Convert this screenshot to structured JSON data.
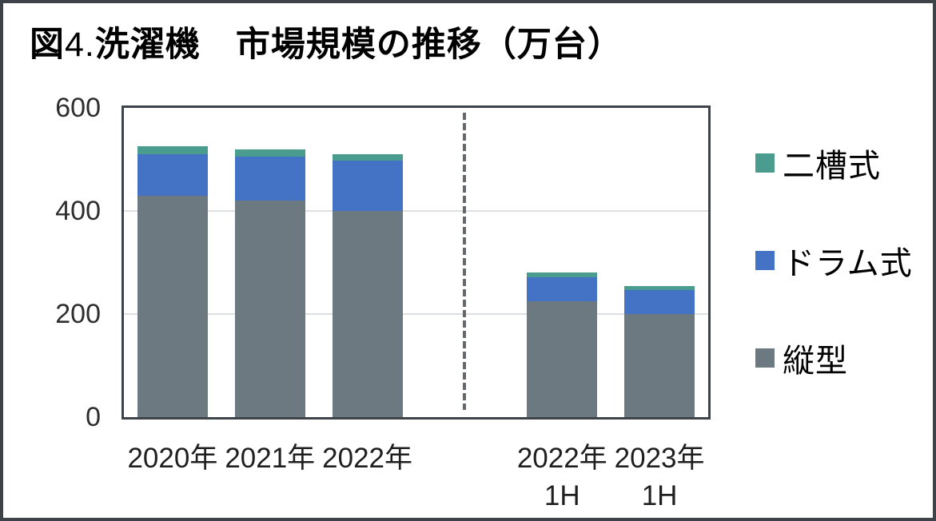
{
  "figure": {
    "title": {
      "fig": "図",
      "num": "4.",
      "main": "洗濯機　市場規模の推移（万台）"
    }
  },
  "colors": {
    "frame": "#3E4349",
    "plot_border": "#3E4349",
    "gridline": "#DDE0E3",
    "separator": "#64686C",
    "series_tate": "#6C7980",
    "series_drum": "#4472C4",
    "series_niso": "#4A9C8F"
  },
  "chart_data": {
    "type": "bar",
    "stacked": true,
    "title": "図4. 洗濯機　市場規模の推移（万台）",
    "unit": "万台",
    "ylim": [
      0,
      600
    ],
    "yticks": [
      0,
      200,
      400,
      600
    ],
    "ytick_labels": [
      "0",
      "200",
      "400",
      "600"
    ],
    "grid": "horizontal",
    "legend_position": "right",
    "categories": [
      "2020年",
      "2021年",
      "2022年",
      "2022年 1H",
      "2023年 1H"
    ],
    "category_labels": [
      [
        "2020年"
      ],
      [
        "2021年"
      ],
      [
        "2022年"
      ],
      [
        "2022年",
        "1H"
      ],
      [
        "2023年",
        "1H"
      ]
    ],
    "slot_count": 6,
    "category_slots": [
      0,
      1,
      2,
      4,
      5
    ],
    "separator_slot": 3,
    "series": [
      {
        "name": "縦型",
        "color": "#6C7980",
        "values": [
          430,
          420,
          400,
          225,
          200
        ]
      },
      {
        "name": "ドラム式",
        "color": "#4472C4",
        "values": [
          80,
          85,
          97,
          47,
          47
        ]
      },
      {
        "name": "二槽式",
        "color": "#4A9C8F",
        "values": [
          15,
          15,
          13,
          8,
          8
        ]
      }
    ],
    "totals": [
      525,
      520,
      510,
      280,
      255
    ],
    "legend_order": [
      "二槽式",
      "ドラム式",
      "縦型"
    ]
  }
}
